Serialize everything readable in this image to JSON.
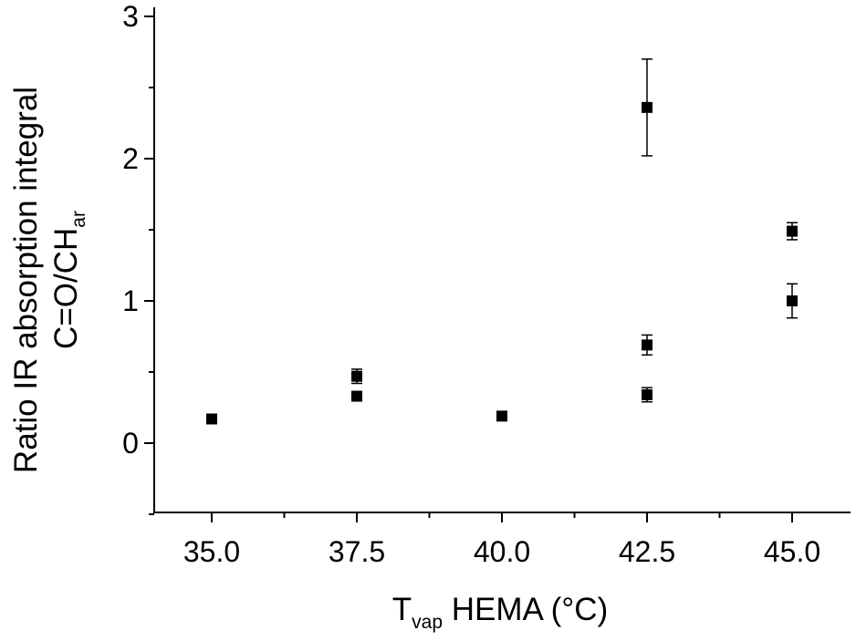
{
  "chart_data": {
    "type": "scatter",
    "xlabel": {
      "main": "T",
      "sub": "vap",
      "rest": " HEMA (°C)"
    },
    "ylabel": {
      "line1": "Ratio IR absorption integral",
      "line2_main": "C=O/CH",
      "line2_sub": "ar"
    },
    "xlim": [
      34.0,
      46.0
    ],
    "ylim": [
      -0.5,
      3.05
    ],
    "x_ticks": [
      35.0,
      37.5,
      40.0,
      42.5,
      45.0
    ],
    "x_tick_labels": [
      "35.0",
      "37.5",
      "40.0",
      "42.5",
      "45.0"
    ],
    "x_minor_ticks": [
      36.25,
      38.75,
      41.25,
      43.75
    ],
    "y_ticks": [
      0,
      1,
      2,
      3
    ],
    "y_tick_labels": [
      "0",
      "1",
      "2",
      "3"
    ],
    "y_minor_ticks": [
      -0.5,
      0.5,
      1.5,
      2.5
    ],
    "grid": false,
    "legend": "none",
    "marker": "filled-square",
    "color": "#000000",
    "points": [
      {
        "x": 35.0,
        "y": 0.17,
        "err": 0.02
      },
      {
        "x": 37.5,
        "y": 0.47,
        "err": 0.05
      },
      {
        "x": 37.5,
        "y": 0.33,
        "err": 0.02
      },
      {
        "x": 40.0,
        "y": 0.19,
        "err": 0.02
      },
      {
        "x": 42.5,
        "y": 2.36,
        "err": 0.34
      },
      {
        "x": 42.5,
        "y": 0.69,
        "err": 0.07
      },
      {
        "x": 42.5,
        "y": 0.34,
        "err": 0.05
      },
      {
        "x": 45.0,
        "y": 1.49,
        "err": 0.06
      },
      {
        "x": 45.0,
        "y": 1.0,
        "err": 0.12
      }
    ]
  }
}
